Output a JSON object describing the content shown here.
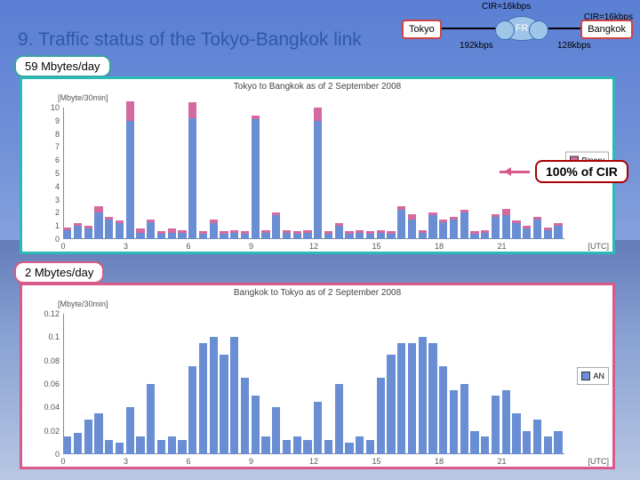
{
  "title": "9.  Traffic status of the Tokyo-Bangkok link",
  "topo": {
    "cir1": "CIR=16kbps",
    "cir2": "CIR=16kbps",
    "nodeA": "Tokyo",
    "nodeB": "FR",
    "nodeC": "Bangkok",
    "kbps1": "192kbps",
    "kbps2": "128kbps"
  },
  "badge1": "59 Mbytes/day",
  "badge2": "2 Mbytes/day",
  "annot": "100% of CIR",
  "chart1": {
    "title": "Tokyo to Bangkok as of 2 September 2008",
    "ylabel": "[Mbyte/30min]",
    "border": "#2bbab7",
    "ylim": [
      0,
      10
    ],
    "yticks": [
      0,
      1,
      2,
      3,
      4,
      5,
      6,
      7,
      8,
      9,
      10
    ],
    "xlim": [
      0,
      24
    ],
    "xticks": [
      0,
      3,
      6,
      9,
      12,
      15,
      18,
      21
    ],
    "xEnd": "[UTC]",
    "colors": {
      "Binary": "#d46aa0",
      "AN": "#6a8ed4"
    },
    "legend": [
      "Binary",
      "AN"
    ],
    "series": [
      {
        "x": 0,
        "b": 0.2,
        "a": 0.7
      },
      {
        "x": 0.5,
        "b": 0.2,
        "a": 1.0
      },
      {
        "x": 1,
        "b": 0.2,
        "a": 0.8
      },
      {
        "x": 1.5,
        "b": 0.5,
        "a": 2.0
      },
      {
        "x": 2,
        "b": 0.2,
        "a": 1.5
      },
      {
        "x": 2.5,
        "b": 0.2,
        "a": 1.2
      },
      {
        "x": 3,
        "b": 1.5,
        "a": 9.0
      },
      {
        "x": 3.5,
        "b": 0.3,
        "a": 0.5
      },
      {
        "x": 4,
        "b": 0.2,
        "a": 1.3
      },
      {
        "x": 4.5,
        "b": 0.2,
        "a": 0.4
      },
      {
        "x": 5,
        "b": 0.3,
        "a": 0.5
      },
      {
        "x": 5.5,
        "b": 0.2,
        "a": 0.5
      },
      {
        "x": 6,
        "b": 1.2,
        "a": 9.2
      },
      {
        "x": 6.5,
        "b": 0.2,
        "a": 0.4
      },
      {
        "x": 7,
        "b": 0.3,
        "a": 1.2
      },
      {
        "x": 7.5,
        "b": 0.2,
        "a": 0.4
      },
      {
        "x": 8,
        "b": 0.2,
        "a": 0.5
      },
      {
        "x": 8.5,
        "b": 0.2,
        "a": 0.4
      },
      {
        "x": 9,
        "b": 0.3,
        "a": 9.1
      },
      {
        "x": 9.5,
        "b": 0.2,
        "a": 0.5
      },
      {
        "x": 10,
        "b": 0.2,
        "a": 1.8
      },
      {
        "x": 10.5,
        "b": 0.2,
        "a": 0.5
      },
      {
        "x": 11,
        "b": 0.2,
        "a": 0.4
      },
      {
        "x": 11.5,
        "b": 0.2,
        "a": 0.5
      },
      {
        "x": 12,
        "b": 1.0,
        "a": 9.0
      },
      {
        "x": 12.5,
        "b": 0.2,
        "a": 0.4
      },
      {
        "x": 13,
        "b": 0.2,
        "a": 1.0
      },
      {
        "x": 13.5,
        "b": 0.2,
        "a": 0.4
      },
      {
        "x": 14,
        "b": 0.2,
        "a": 0.5
      },
      {
        "x": 14.5,
        "b": 0.2,
        "a": 0.4
      },
      {
        "x": 15,
        "b": 0.2,
        "a": 0.5
      },
      {
        "x": 15.5,
        "b": 0.2,
        "a": 0.4
      },
      {
        "x": 16,
        "b": 0.3,
        "a": 2.2
      },
      {
        "x": 16.5,
        "b": 0.4,
        "a": 1.5
      },
      {
        "x": 17,
        "b": 0.2,
        "a": 0.5
      },
      {
        "x": 17.5,
        "b": 0.2,
        "a": 1.8
      },
      {
        "x": 18,
        "b": 0.2,
        "a": 1.3
      },
      {
        "x": 18.5,
        "b": 0.2,
        "a": 1.5
      },
      {
        "x": 19,
        "b": 0.2,
        "a": 2.0
      },
      {
        "x": 19.5,
        "b": 0.2,
        "a": 0.4
      },
      {
        "x": 20,
        "b": 0.2,
        "a": 0.5
      },
      {
        "x": 20.5,
        "b": 0.2,
        "a": 1.7
      },
      {
        "x": 21,
        "b": 0.5,
        "a": 1.8
      },
      {
        "x": 21.5,
        "b": 0.2,
        "a": 1.2
      },
      {
        "x": 22,
        "b": 0.2,
        "a": 0.8
      },
      {
        "x": 22.5,
        "b": 0.2,
        "a": 1.5
      },
      {
        "x": 23,
        "b": 0.2,
        "a": 0.7
      },
      {
        "x": 23.5,
        "b": 0.2,
        "a": 1.0
      }
    ]
  },
  "chart2": {
    "title": "Bangkok to Tokyo as of 2 September 2008",
    "ylabel": "[Mbyte/30min]",
    "border": "#d85a8a",
    "ylim": [
      0,
      0.12
    ],
    "yticks": [
      0,
      0.02,
      0.04,
      0.06,
      0.08,
      0.1,
      0.12
    ],
    "xlim": [
      0,
      24
    ],
    "xticks": [
      0,
      3,
      6,
      9,
      12,
      15,
      18,
      21
    ],
    "xEnd": "[UTC]",
    "colors": {
      "AN": "#6a8ed4"
    },
    "legend": [
      "AN"
    ],
    "series": [
      {
        "x": 0,
        "a": 0.015
      },
      {
        "x": 0.5,
        "a": 0.018
      },
      {
        "x": 1,
        "a": 0.03
      },
      {
        "x": 1.5,
        "a": 0.035
      },
      {
        "x": 2,
        "a": 0.012
      },
      {
        "x": 2.5,
        "a": 0.01
      },
      {
        "x": 3,
        "a": 0.04
      },
      {
        "x": 3.5,
        "a": 0.015
      },
      {
        "x": 4,
        "a": 0.06
      },
      {
        "x": 4.5,
        "a": 0.012
      },
      {
        "x": 5,
        "a": 0.015
      },
      {
        "x": 5.5,
        "a": 0.012
      },
      {
        "x": 6,
        "a": 0.075
      },
      {
        "x": 6.5,
        "a": 0.095
      },
      {
        "x": 7,
        "a": 0.1
      },
      {
        "x": 7.5,
        "a": 0.085
      },
      {
        "x": 8,
        "a": 0.1
      },
      {
        "x": 8.5,
        "a": 0.065
      },
      {
        "x": 9,
        "a": 0.05
      },
      {
        "x": 9.5,
        "a": 0.015
      },
      {
        "x": 10,
        "a": 0.04
      },
      {
        "x": 10.5,
        "a": 0.012
      },
      {
        "x": 11,
        "a": 0.015
      },
      {
        "x": 11.5,
        "a": 0.012
      },
      {
        "x": 12,
        "a": 0.045
      },
      {
        "x": 12.5,
        "a": 0.012
      },
      {
        "x": 13,
        "a": 0.06
      },
      {
        "x": 13.5,
        "a": 0.01
      },
      {
        "x": 14,
        "a": 0.015
      },
      {
        "x": 14.5,
        "a": 0.012
      },
      {
        "x": 15,
        "a": 0.065
      },
      {
        "x": 15.5,
        "a": 0.085
      },
      {
        "x": 16,
        "a": 0.095
      },
      {
        "x": 16.5,
        "a": 0.095
      },
      {
        "x": 17,
        "a": 0.1
      },
      {
        "x": 17.5,
        "a": 0.095
      },
      {
        "x": 18,
        "a": 0.075
      },
      {
        "x": 18.5,
        "a": 0.055
      },
      {
        "x": 19,
        "a": 0.06
      },
      {
        "x": 19.5,
        "a": 0.02
      },
      {
        "x": 20,
        "a": 0.015
      },
      {
        "x": 20.5,
        "a": 0.05
      },
      {
        "x": 21,
        "a": 0.055
      },
      {
        "x": 21.5,
        "a": 0.035
      },
      {
        "x": 22,
        "a": 0.02
      },
      {
        "x": 22.5,
        "a": 0.03
      },
      {
        "x": 23,
        "a": 0.015
      },
      {
        "x": 23.5,
        "a": 0.02
      }
    ]
  }
}
